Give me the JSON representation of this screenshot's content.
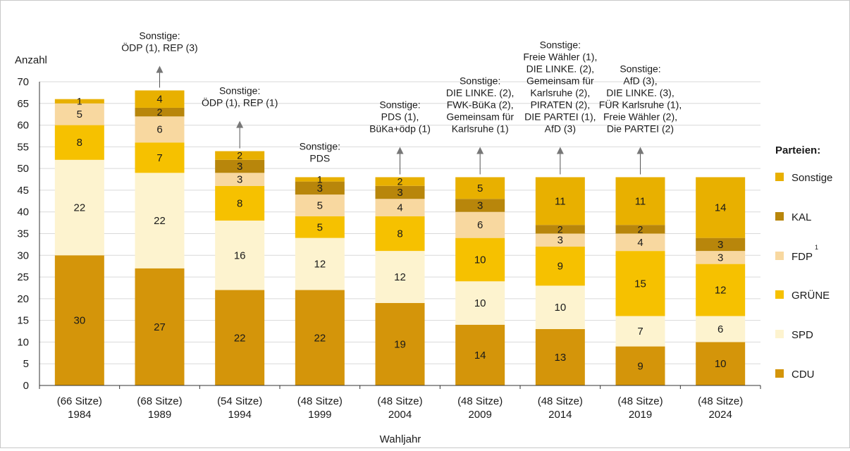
{
  "chart_data": {
    "type": "bar",
    "stacked": true,
    "ylabel": "Anzahl",
    "xlabel": "Wahljahr",
    "ylim": [
      0,
      70
    ],
    "yticks": [
      0,
      5,
      10,
      15,
      20,
      25,
      30,
      35,
      40,
      45,
      50,
      55,
      60,
      65,
      70
    ],
    "categories": [
      "1984",
      "1989",
      "1994",
      "1999",
      "2004",
      "2009",
      "2014",
      "2019",
      "2024"
    ],
    "seats_labels": [
      "(66 Sitze)",
      "(68 Sitze)",
      "(54 Sitze)",
      "(48 Sitze)",
      "(48 Sitze)",
      "(48 Sitze)",
      "(48 Sitze)",
      "(48 Sitze)",
      "(48 Sitze)"
    ],
    "series": [
      {
        "name": "CDU",
        "color": "#d4950a",
        "values": [
          30,
          27,
          22,
          22,
          19,
          14,
          13,
          9,
          10
        ]
      },
      {
        "name": "SPD",
        "color": "#fdf3cf",
        "values": [
          22,
          22,
          16,
          12,
          12,
          10,
          10,
          7,
          6
        ]
      },
      {
        "name": "GRÜNE",
        "color": "#f6c100",
        "values": [
          8,
          7,
          8,
          5,
          8,
          10,
          9,
          15,
          12
        ]
      },
      {
        "name": "FDP",
        "color": "#f8d8a0",
        "values": [
          5,
          6,
          3,
          5,
          4,
          6,
          3,
          4,
          3
        ]
      },
      {
        "name": "KAL",
        "color": "#b8860b",
        "values": [
          0,
          2,
          3,
          3,
          3,
          3,
          2,
          2,
          3
        ]
      },
      {
        "name": "Sonstige",
        "color": "#e8b000",
        "values": [
          1,
          4,
          2,
          1,
          2,
          5,
          11,
          11,
          14
        ]
      }
    ],
    "legend": {
      "title": "Parteien:",
      "position": "right",
      "items": [
        "Sonstige",
        "KAL",
        "FDP",
        "GRÜNE",
        "SPD",
        "CDU"
      ],
      "fdp_superscript": "1"
    },
    "annotations": [
      {
        "category": "1989",
        "lines": [
          "Sonstige:",
          "ÖDP (1), REP (3)"
        ]
      },
      {
        "category": "1994",
        "lines": [
          "Sonstige:",
          "ÖDP (1), REP (1)"
        ]
      },
      {
        "category": "1999",
        "lines": [
          "Sonstige:",
          "PDS"
        ]
      },
      {
        "category": "2004",
        "lines": [
          "Sonstige:",
          "PDS (1),",
          "BüKa+ödp (1)"
        ]
      },
      {
        "category": "2009",
        "lines": [
          "Sonstige:",
          "DIE LINKE. (2),",
          "FWK-BüKa (2),",
          "Gemeinsam für",
          "Karlsruhe (1)"
        ]
      },
      {
        "category": "2014",
        "lines": [
          "Sonstige:",
          "Freie Wähler (1),",
          "DIE LINKE. (2),",
          "Gemeinsam für",
          "Karlsruhe (2),",
          "PIRATEN (2),",
          "DIE PARTEI (1),",
          "AfD (3)"
        ]
      },
      {
        "category": "2019",
        "lines": [
          "Sonstige:",
          "AfD (3),",
          "DIE LINKE. (3),",
          "FÜR Karlsruhe (1),",
          "Freie Wähler (2),",
          "Die PARTEI (2)"
        ]
      }
    ]
  }
}
